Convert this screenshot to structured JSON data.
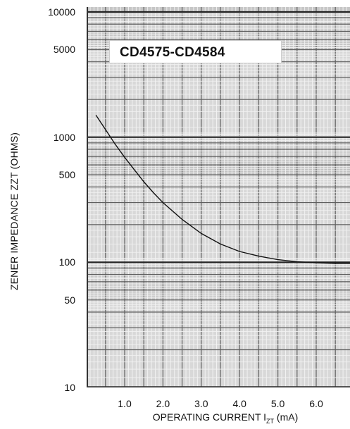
{
  "chart_data": {
    "type": "line",
    "title": "CD4575-CD4584",
    "xlabel": "OPERATING CURRENT I",
    "xlabel_sub": "ZT",
    "xlabel_unit": " (mA)",
    "ylabel": "ZENER IMPEDANCE ZZT (OHMS)",
    "y_scale": "log",
    "ylim": [
      10,
      10000
    ],
    "xlim": [
      0,
      7.0
    ],
    "x_ticks": [
      "1.0",
      "2.0",
      "3.0",
      "4.0",
      "5.0",
      "6.0"
    ],
    "y_ticks": [
      "10000",
      "5000",
      "1000",
      "500",
      "100",
      "50",
      "10"
    ],
    "grid": true,
    "series": [
      {
        "x": [
          0.25,
          0.5,
          0.75,
          1.0,
          1.25,
          1.5,
          1.75,
          2.0,
          2.5,
          3.0,
          3.5,
          4.0,
          4.5,
          5.0,
          5.5,
          6.0,
          6.5,
          7.0
        ],
        "y": [
          1500,
          1150,
          880,
          690,
          550,
          440,
          360,
          300,
          220,
          170,
          140,
          122,
          112,
          105,
          101,
          99,
          98,
          98
        ]
      }
    ]
  }
}
